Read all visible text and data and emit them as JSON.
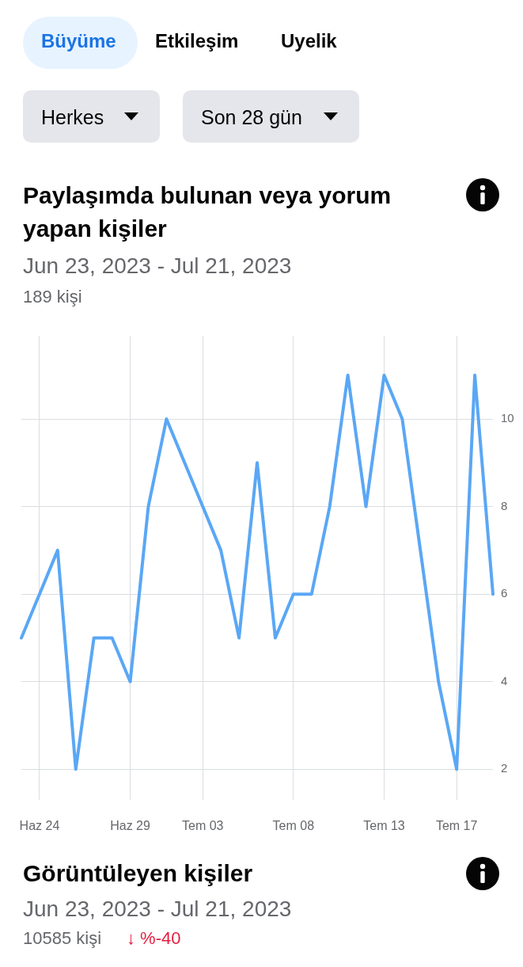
{
  "chart_data": {
    "type": "line",
    "title": "Paylaşımda bulunan veya yorum yapan kişiler",
    "subtitle": "Jun 23, 2023 - Jul 21, 2023",
    "categories": [
      null,
      "Haz 24",
      null,
      null,
      null,
      null,
      "Haz 29",
      null,
      null,
      null,
      "Tem 03",
      null,
      null,
      null,
      null,
      "Tem 08",
      null,
      null,
      null,
      null,
      "Tem 13",
      null,
      null,
      null,
      "Tem 17",
      null,
      null
    ],
    "series": [
      {
        "color": "#5aa7f5",
        "values": [
          5,
          6,
          7,
          2,
          5,
          5,
          4,
          8,
          10,
          9,
          8,
          7,
          5,
          9,
          5,
          6,
          6,
          8,
          11,
          8,
          11,
          10,
          7,
          4,
          2,
          11,
          6
        ]
      }
    ],
    "ylim": [
      1.3,
      11.9
    ],
    "yticks": [
      2,
      4,
      6,
      8,
      10
    ],
    "grid": true,
    "legend": false,
    "marker": "none",
    "line_style": "solid",
    "annotations": [
      "Büyüme",
      "Etkileşim",
      "Uyelik",
      "Herkes",
      "Son 28 gün",
      "189 kişi",
      "Görüntüleyen kişiler",
      "Jun 23, 2023 - Jul 21, 2023",
      "10585 kişi",
      "↓ %-40"
    ]
  }
}
